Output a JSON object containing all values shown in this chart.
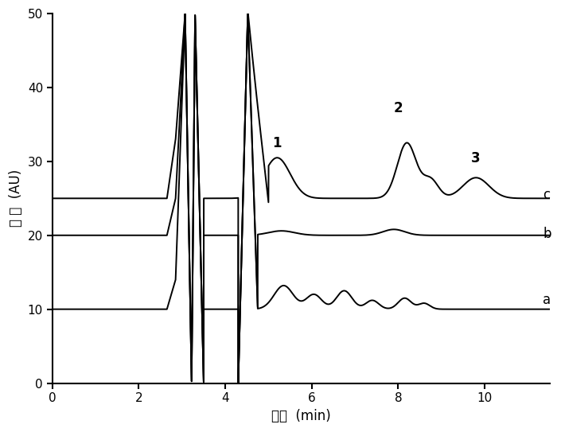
{
  "xlabel": "时间  (min)",
  "ylabel": "响 应  (AU)",
  "xlim": [
    0,
    11.5
  ],
  "ylim": [
    0,
    50
  ],
  "xticks": [
    0,
    2,
    4,
    6,
    8,
    10
  ],
  "yticks": [
    0,
    10,
    20,
    30,
    40,
    50
  ],
  "line_color": "#000000",
  "background_color": "#ffffff",
  "label_a": "a",
  "label_b": "b",
  "label_c": "c"
}
